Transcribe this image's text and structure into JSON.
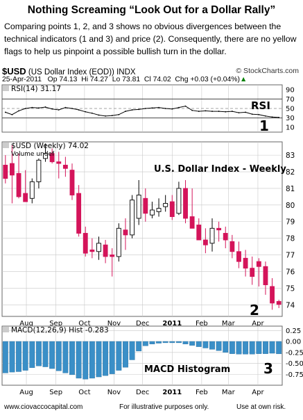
{
  "headline": "Nothing Screaming “Look Out for a Dollar Rally”",
  "paragraph": "Comparing points 1, 2, and 3 shows no obvious divergences between the technical indicators (1 and 3) and price (2).   Consequently, there are no yellow flags to help us pinpoint a possible bullish turn in the dollar.",
  "chart_header": {
    "symbol": "$USD",
    "name": "(US Dollar Index (EOD))",
    "exchange": "INDX",
    "source": "© StockCharts.com",
    "date": "25-Apr-2011",
    "open": "Op 74.13",
    "high": "Hi 74.27",
    "low": "Lo 73.81",
    "close": "Cl 74.02",
    "change": "Chg +0.03 (+0.04%)",
    "change_arrow": "▲",
    "change_color": "#008000"
  },
  "footer": {
    "website": "www.ciovaccocapital.com",
    "note": "For illustrative purposes only.",
    "risk": "Use at own risk."
  },
  "chart_data": [
    {
      "type": "line",
      "label": "RSI(14) 31.17",
      "annotation": "RSI",
      "marker": "1",
      "ylim": [
        0,
        100
      ],
      "yticks": [
        10,
        30,
        50,
        70,
        90
      ],
      "reference_lines": [
        30,
        50,
        70
      ],
      "x": [
        "2010-07-10",
        "2010-07-17",
        "2010-07-24",
        "2010-07-31",
        "2010-08-07",
        "2010-08-14",
        "2010-08-21",
        "2010-08-28",
        "2010-09-04",
        "2010-09-11",
        "2010-09-18",
        "2010-09-25",
        "2010-10-02",
        "2010-10-09",
        "2010-10-16",
        "2010-10-23",
        "2010-10-30",
        "2010-11-06",
        "2010-11-13",
        "2010-11-20",
        "2010-11-27",
        "2010-12-04",
        "2010-12-11",
        "2010-12-18",
        "2010-12-25",
        "2011-01-01",
        "2011-01-08",
        "2011-01-15",
        "2011-01-22",
        "2011-01-29",
        "2011-02-05",
        "2011-02-12",
        "2011-02-19",
        "2011-02-26",
        "2011-03-05",
        "2011-03-12",
        "2011-03-19",
        "2011-03-26",
        "2011-04-02",
        "2011-04-09",
        "2011-04-16",
        "2011-04-23"
      ],
      "values": [
        42,
        37,
        45,
        50,
        52,
        51,
        53,
        49,
        47,
        52,
        50,
        47,
        43,
        40,
        36,
        34,
        35,
        37,
        44,
        47,
        48,
        50,
        51,
        52,
        50,
        49,
        52,
        55,
        46,
        44,
        45,
        44,
        44,
        43,
        44,
        41,
        42,
        38,
        37,
        34,
        32,
        31
      ]
    },
    {
      "type": "candlestick",
      "title": "U.S. Dollar Index - Weekly",
      "label": "$USD (Weekly) 74.02",
      "volume_label": "Volume undef",
      "marker": "2",
      "ylim": [
        73.3,
        83.8
      ],
      "yticks": [
        74,
        75,
        76,
        77,
        78,
        79,
        80,
        81,
        82,
        83
      ],
      "xticks": [
        "Aug",
        "Sep",
        "Oct",
        "Nov",
        "Dec",
        "2011",
        "Feb",
        "Mar",
        "Apr"
      ],
      "x": [
        "2010-07-10",
        "2010-07-17",
        "2010-07-24",
        "2010-07-31",
        "2010-08-07",
        "2010-08-14",
        "2010-08-21",
        "2010-08-28",
        "2010-09-04",
        "2010-09-11",
        "2010-09-18",
        "2010-09-25",
        "2010-10-02",
        "2010-10-09",
        "2010-10-16",
        "2010-10-23",
        "2010-10-30",
        "2010-11-06",
        "2010-11-13",
        "2010-11-20",
        "2010-11-27",
        "2010-12-04",
        "2010-12-11",
        "2010-12-18",
        "2010-12-25",
        "2011-01-01",
        "2011-01-08",
        "2011-01-15",
        "2011-01-22",
        "2011-01-29",
        "2011-02-05",
        "2011-02-12",
        "2011-02-19",
        "2011-02-26",
        "2011-03-05",
        "2011-03-12",
        "2011-03-19",
        "2011-03-26",
        "2011-04-02",
        "2011-04-09",
        "2011-04-16",
        "2011-04-23"
      ],
      "open": [
        82.4,
        82.5,
        81.9,
        80.7,
        80.4,
        81.4,
        82.8,
        83.1,
        82.6,
        82.4,
        82.1,
        80.7,
        78.3,
        77.3,
        77.2,
        77.6,
        77.0,
        76.9,
        78.5,
        78.2,
        79.2,
        80.4,
        79.4,
        79.6,
        79.9,
        80.2,
        79.5,
        81.0,
        79.3,
        78.8,
        77.9,
        77.7,
        78.6,
        78.3,
        77.8,
        77.2,
        76.8,
        76.2,
        76.6,
        76.3,
        75.1,
        74.2
      ],
      "high": [
        83.0,
        83.6,
        83.1,
        82.1,
        81.6,
        82.8,
        83.7,
        83.4,
        83.2,
        82.9,
        82.5,
        81.2,
        78.7,
        78.0,
        78.1,
        77.9,
        77.4,
        78.9,
        79.2,
        80.6,
        81.5,
        81.0,
        80.2,
        80.4,
        80.6,
        80.6,
        81.4,
        81.5,
        81.0,
        79.2,
        78.6,
        79.2,
        79.0,
        78.7,
        78.2,
        77.8,
        77.3,
        76.9,
        76.8,
        76.6,
        75.6,
        74.3
      ],
      "low": [
        81.3,
        80.1,
        80.4,
        80.2,
        80.1,
        81.0,
        82.6,
        82.5,
        81.6,
        81.7,
        80.3,
        78.1,
        76.9,
        76.8,
        76.7,
        76.5,
        75.7,
        76.6,
        77.3,
        78.0,
        78.8,
        79.0,
        79.2,
        79.3,
        79.6,
        79.1,
        79.4,
        78.9,
        78.6,
        77.9,
        77.1,
        77.2,
        77.8,
        77.4,
        76.8,
        76.2,
        75.7,
        75.2,
        75.1,
        74.6,
        73.7,
        73.8
      ],
      "close": [
        81.6,
        81.8,
        80.5,
        80.2,
        81.4,
        82.7,
        83.1,
        82.6,
        82.5,
        82.2,
        80.6,
        78.3,
        77.1,
        77.2,
        77.7,
        76.9,
        76.9,
        78.6,
        78.2,
        80.3,
        80.6,
        79.5,
        79.7,
        79.8,
        80.1,
        79.3,
        81.0,
        79.2,
        78.6,
        77.9,
        77.6,
        78.6,
        78.5,
        77.9,
        77.2,
        76.6,
        76.2,
        75.7,
        76.3,
        75.2,
        74.1,
        74.02
      ]
    },
    {
      "type": "bar",
      "label": "MACD(12,26,9)  Hist -0.283",
      "title": "MACD Histogram",
      "marker": "3",
      "ylim": [
        -1.0,
        0.35
      ],
      "yticks": [
        0.25,
        0.0,
        -0.25,
        -0.5,
        -0.75
      ],
      "ytick_labels": [
        "0.25",
        "0.00",
        "-0.25",
        "-0.50",
        "-0.75"
      ],
      "xticks": [
        "Aug",
        "Sep",
        "Oct",
        "Nov",
        "Dec",
        "2011",
        "Feb",
        "Mar",
        "Apr"
      ],
      "x": [
        "2010-07-10",
        "2010-07-17",
        "2010-07-24",
        "2010-07-31",
        "2010-08-07",
        "2010-08-14",
        "2010-08-21",
        "2010-08-28",
        "2010-09-04",
        "2010-09-11",
        "2010-09-18",
        "2010-09-25",
        "2010-10-02",
        "2010-10-09",
        "2010-10-16",
        "2010-10-23",
        "2010-10-30",
        "2010-11-06",
        "2010-11-13",
        "2010-11-20",
        "2010-11-27",
        "2010-12-04",
        "2010-12-11",
        "2010-12-18",
        "2010-12-25",
        "2011-01-01",
        "2011-01-08",
        "2011-01-15",
        "2011-01-22",
        "2011-01-29",
        "2011-02-05",
        "2011-02-12",
        "2011-02-19",
        "2011-02-26",
        "2011-03-05",
        "2011-03-12",
        "2011-03-19",
        "2011-03-26",
        "2011-04-02",
        "2011-04-09",
        "2011-04-16",
        "2011-04-23"
      ],
      "values": [
        -0.72,
        -0.7,
        -0.69,
        -0.66,
        -0.6,
        -0.56,
        -0.58,
        -0.62,
        -0.67,
        -0.72,
        -0.76,
        -0.84,
        -0.86,
        -0.84,
        -0.81,
        -0.78,
        -0.74,
        -0.66,
        -0.59,
        -0.42,
        -0.22,
        -0.1,
        -0.06,
        -0.04,
        -0.03,
        -0.03,
        -0.03,
        -0.06,
        -0.09,
        -0.12,
        -0.15,
        -0.18,
        -0.21,
        -0.25,
        -0.28,
        -0.29,
        -0.29,
        -0.29,
        -0.28,
        -0.28,
        -0.27,
        -0.283
      ]
    }
  ],
  "colors": {
    "up_candle": "#ffffff",
    "down_candle": "#d4145a",
    "histogram": "#3a8fc7",
    "rsi_line": "#000000",
    "grid": "#c8c8c8"
  }
}
